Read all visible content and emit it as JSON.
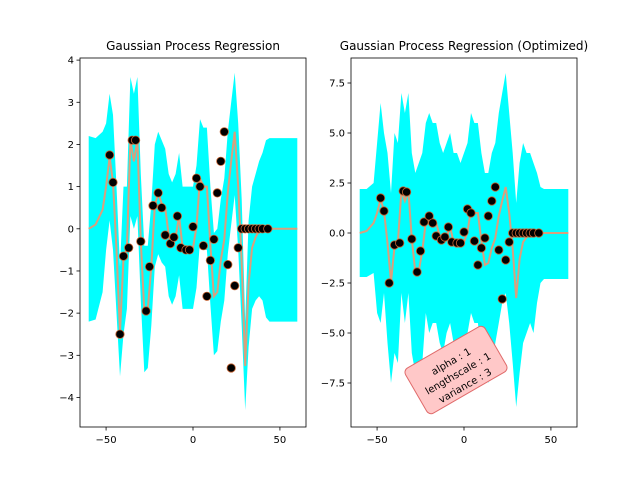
{
  "figure": {
    "band_color": "#00ffff",
    "mean_color": "#d9a07e",
    "point_color": "#000000",
    "point_edge_color": "#c86432",
    "annotation_face": "#ffc8c8",
    "annotation_edge": "#e06a6a"
  },
  "chart_data": [
    {
      "type": "line",
      "title": "Gaussian Process Regression",
      "xlabel": "",
      "ylabel": "",
      "xlim": [
        -65,
        65
      ],
      "ylim": [
        -4.7,
        4.05
      ],
      "xticks": [
        -50,
        0,
        50
      ],
      "yticks": [
        -4,
        -3,
        -2,
        -1,
        0,
        1,
        2,
        3,
        4
      ],
      "xtick_labels": [
        "−50",
        "0",
        "50"
      ],
      "ytick_labels": [
        "−4",
        "−3",
        "−2",
        "−1",
        "0",
        "1",
        "2",
        "3",
        "4"
      ],
      "grid": false,
      "mean": {
        "x": [
          -60,
          -56,
          -52,
          -50,
          -48,
          -46,
          -44,
          -42,
          -40,
          -38,
          -36,
          -34,
          -32,
          -30,
          -28,
          -26,
          -24,
          -22,
          -20,
          -18,
          -16,
          -14,
          -12,
          -10,
          -8,
          -6,
          -4,
          -2,
          0,
          2,
          4,
          6,
          8,
          10,
          12,
          14,
          16,
          18,
          20,
          22,
          24,
          26,
          28,
          30,
          32,
          34,
          36,
          38,
          40,
          42,
          44,
          46,
          48,
          50,
          54,
          60
        ],
        "y": [
          0.0,
          0.1,
          0.45,
          1.0,
          1.7,
          1.1,
          -0.5,
          -2.45,
          -0.7,
          -0.45,
          2.1,
          1.6,
          2.1,
          -0.3,
          -1.95,
          -1.9,
          -0.9,
          0.55,
          0.85,
          0.6,
          0.5,
          -0.15,
          -0.35,
          -0.2,
          0.3,
          -0.45,
          -0.5,
          -0.5,
          -0.45,
          0.05,
          1.2,
          1.0,
          1.0,
          -0.4,
          -1.6,
          -1.5,
          -0.75,
          -0.25,
          0.85,
          1.6,
          2.3,
          1.0,
          -0.8,
          -3.25,
          -1.3,
          -0.45,
          -0.2,
          -0.05,
          0.0,
          0.0,
          0.0,
          0.0,
          0.0,
          0.0,
          0.0,
          0.0
        ]
      },
      "band_low": [
        -2.2,
        -2.15,
        -1.5,
        -0.5,
        0.2,
        -0.5,
        -2.0,
        -3.5,
        -2.5,
        -1.9,
        0.3,
        0.0,
        0.3,
        -1.7,
        -3.4,
        -3.3,
        -2.3,
        -0.9,
        -0.6,
        -0.8,
        -0.9,
        -1.6,
        -1.8,
        -1.6,
        -1.1,
        -1.9,
        -1.9,
        -1.9,
        -1.9,
        -1.4,
        -0.3,
        -0.5,
        -0.5,
        -1.8,
        -3.0,
        -2.9,
        -2.2,
        -1.7,
        -0.6,
        0.1,
        0.8,
        -0.5,
        -2.3,
        -4.3,
        -2.8,
        -1.9,
        -1.7,
        -1.6,
        -1.7,
        -2.1,
        -2.2,
        -2.2,
        -2.2,
        -2.2,
        -2.2,
        -2.2
      ],
      "band_high": [
        2.2,
        2.15,
        2.3,
        2.5,
        3.2,
        2.7,
        1.0,
        -0.9,
        1.0,
        1.0,
        3.6,
        3.2,
        3.6,
        1.3,
        -0.4,
        -0.4,
        0.6,
        2.0,
        2.3,
        2.1,
        1.9,
        1.3,
        1.1,
        1.3,
        1.8,
        1.0,
        1.0,
        1.0,
        1.0,
        1.5,
        2.6,
        2.4,
        2.4,
        1.0,
        -0.1,
        0.0,
        0.7,
        1.2,
        2.3,
        3.0,
        3.7,
        2.5,
        0.7,
        -2.2,
        0.2,
        1.0,
        1.3,
        1.6,
        1.8,
        2.1,
        2.15,
        2.15,
        2.15,
        2.15,
        2.15,
        2.15
      ],
      "points": {
        "x": [
          -48,
          -46,
          -42,
          -40,
          -37,
          -35,
          -33,
          -30,
          -27,
          -25,
          -23,
          -20,
          -18,
          -16,
          -13,
          -11,
          -9,
          -7,
          -4,
          -2,
          0,
          2,
          4,
          6,
          8,
          10,
          12,
          14,
          16,
          18,
          20,
          22,
          24,
          26,
          28,
          30,
          32,
          34,
          36,
          38,
          40,
          43
        ],
        "y": [
          1.75,
          1.1,
          -2.5,
          -0.65,
          -0.45,
          2.1,
          2.1,
          -0.3,
          -1.95,
          -0.9,
          0.55,
          0.85,
          0.5,
          -0.15,
          -0.35,
          -0.2,
          0.3,
          -0.45,
          -0.5,
          -0.5,
          0.05,
          1.2,
          1.0,
          -0.4,
          -1.6,
          -0.75,
          -0.25,
          0.85,
          1.6,
          2.3,
          -0.85,
          -3.3,
          -1.35,
          -0.45,
          0.0,
          0.0,
          0.0,
          0.0,
          0.0,
          0.0,
          0.0,
          0.0
        ]
      }
    },
    {
      "type": "line",
      "title": "Gaussian Process Regression (Optimized)",
      "xlabel": "",
      "ylabel": "",
      "xlim": [
        -65,
        65
      ],
      "ylim": [
        -9.7,
        8.75
      ],
      "xticks": [
        -50,
        0,
        50
      ],
      "yticks": [
        -7.5,
        -5.0,
        -2.5,
        0.0,
        2.5,
        5.0,
        7.5
      ],
      "xtick_labels": [
        "−50",
        "0",
        "50"
      ],
      "ytick_labels": [
        "−7.5",
        "−5.0",
        "−2.5",
        "0.0",
        "2.5",
        "5.0",
        "7.5"
      ],
      "grid": false,
      "annotation": [
        "alpha : 1",
        "lengthscale : 1",
        "variance : 3"
      ],
      "mean": {
        "x": [
          -60,
          -56,
          -52,
          -50,
          -48,
          -46,
          -44,
          -42,
          -40,
          -38,
          -36,
          -34,
          -32,
          -30,
          -28,
          -26,
          -24,
          -22,
          -20,
          -18,
          -16,
          -14,
          -12,
          -10,
          -8,
          -6,
          -4,
          -2,
          0,
          2,
          4,
          6,
          8,
          10,
          12,
          14,
          16,
          18,
          20,
          22,
          24,
          26,
          28,
          30,
          32,
          34,
          36,
          38,
          40,
          42,
          44,
          46,
          48,
          50,
          54,
          60
        ],
        "y": [
          0.0,
          0.1,
          0.5,
          1.0,
          1.7,
          1.1,
          -0.5,
          -2.45,
          -0.7,
          -0.45,
          2.1,
          1.6,
          2.1,
          -0.3,
          -1.95,
          -1.9,
          -0.9,
          0.55,
          0.85,
          0.6,
          0.5,
          -0.15,
          -0.35,
          -0.2,
          0.3,
          -0.45,
          -0.5,
          -0.5,
          -0.45,
          0.05,
          1.2,
          1.0,
          1.0,
          -0.4,
          -1.6,
          -1.5,
          -0.75,
          -0.25,
          0.85,
          1.6,
          2.3,
          1.0,
          -0.8,
          -3.25,
          -1.3,
          -0.45,
          -0.2,
          -0.05,
          0.0,
          0.0,
          0.0,
          0.0,
          0.0,
          0.0,
          0.0,
          0.0
        ]
      },
      "band_low": [
        -2.2,
        -2.2,
        -2.0,
        -4.0,
        -4.5,
        -3.0,
        -5.5,
        -7.5,
        -6.0,
        -6.5,
        -3.0,
        -4.5,
        -3.0,
        -6.0,
        -7.0,
        -7.5,
        -6.5,
        -4.0,
        -5.0,
        -4.5,
        -4.5,
        -5.5,
        -6.0,
        -5.0,
        -4.5,
        -5.5,
        -6.0,
        -6.5,
        -5.5,
        -5.0,
        -4.0,
        -4.5,
        -4.5,
        -6.0,
        -7.0,
        -7.5,
        -6.5,
        -5.5,
        -4.5,
        -3.5,
        -3.0,
        -4.5,
        -6.5,
        -8.7,
        -7.0,
        -5.5,
        -5.0,
        -4.5,
        -5.0,
        -3.5,
        -2.5,
        -2.3,
        -2.3,
        -2.3,
        -2.3,
        -2.3
      ],
      "band_high": [
        2.2,
        2.2,
        2.5,
        4.5,
        6.5,
        5.0,
        4.0,
        2.0,
        5.0,
        4.5,
        7.0,
        6.0,
        7.0,
        4.0,
        3.0,
        3.5,
        4.0,
        5.5,
        6.0,
        5.5,
        5.5,
        4.5,
        4.0,
        4.5,
        5.0,
        4.0,
        4.0,
        3.5,
        4.0,
        4.5,
        6.0,
        5.5,
        5.5,
        4.0,
        3.0,
        3.0,
        4.0,
        4.5,
        6.0,
        7.0,
        8.0,
        6.0,
        4.0,
        1.5,
        3.5,
        4.5,
        4.0,
        4.0,
        3.5,
        3.0,
        2.3,
        2.2,
        2.2,
        2.2,
        2.2,
        2.2
      ],
      "points": {
        "x": [
          -48,
          -46,
          -43,
          -40,
          -37,
          -35,
          -33,
          -30,
          -27,
          -25,
          -23,
          -20,
          -18,
          -16,
          -13,
          -11,
          -9,
          -7,
          -4,
          -2,
          0,
          2,
          4,
          6,
          8,
          10,
          12,
          14,
          16,
          18,
          20,
          22,
          24,
          26,
          28,
          30,
          32,
          34,
          36,
          38,
          40,
          43
        ],
        "y": [
          1.75,
          1.1,
          -2.5,
          -0.6,
          -0.5,
          2.1,
          2.05,
          -0.3,
          -1.95,
          -0.9,
          0.55,
          0.85,
          0.5,
          -0.15,
          -0.35,
          -0.2,
          0.3,
          -0.45,
          -0.5,
          -0.5,
          0.05,
          1.2,
          1.0,
          -0.4,
          -1.6,
          -0.75,
          -0.25,
          0.85,
          1.6,
          2.3,
          -0.85,
          -3.3,
          -1.35,
          -0.45,
          0.0,
          0.0,
          0.0,
          0.0,
          0.0,
          0.0,
          0.0,
          0.0
        ]
      }
    }
  ]
}
